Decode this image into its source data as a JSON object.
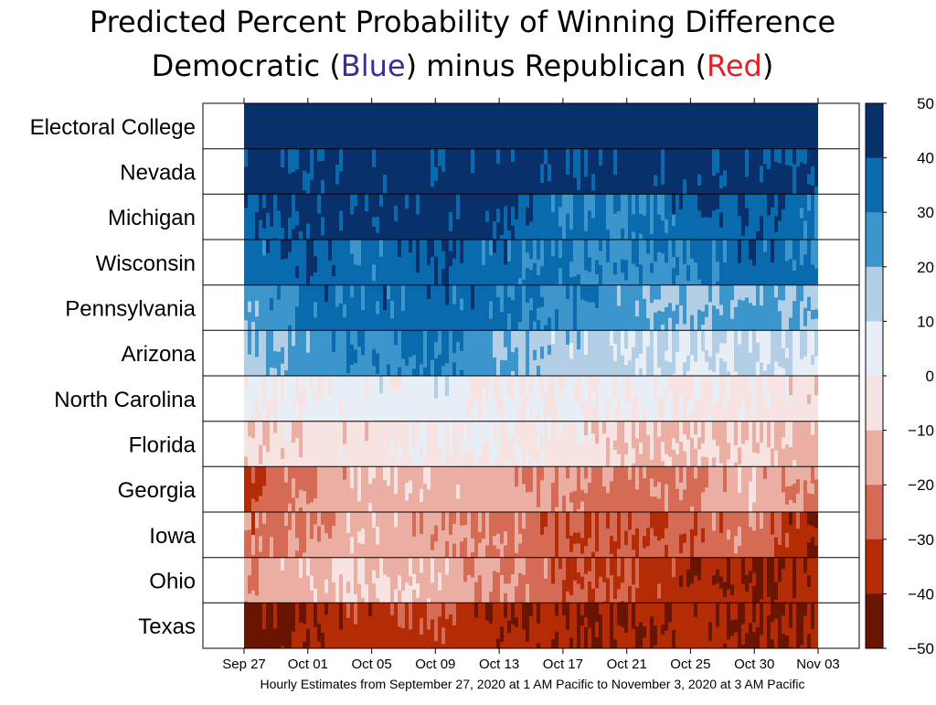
{
  "title": {
    "line1": "Predicted Percent Probability of Winning Difference",
    "line2_prefix": "Democratic (",
    "line2_dem": "Blue",
    "line2_mid": ") minus Republican (",
    "line2_rep": "Red",
    "line2_suffix": ")"
  },
  "footnote": "Hourly Estimates from September 27, 2020 at 1 AM Pacific to November 3, 2020 at 3 AM Pacific",
  "chart_data": {
    "type": "heatmap",
    "title": "Predicted Percent Probability of Winning Difference",
    "subtitle": "Democratic (Blue) minus Republican (Red)",
    "xlabel": "Hourly Estimates from September 27, 2020 at 1 AM Pacific to November 3, 2020 at 3 AM Pacific",
    "x_start": "2020-09-27",
    "x_end": "2020-11-03",
    "x_ticks": [
      "Sep 27",
      "Oct 01",
      "Oct 05",
      "Oct 09",
      "Oct 13",
      "Oct 17",
      "Oct 21",
      "Oct 25",
      "Oct 30",
      "Nov 03"
    ],
    "colorbar": {
      "range": [
        -50,
        50
      ],
      "ticks": [
        "50",
        "40",
        "30",
        "20",
        "10",
        "0",
        "−10",
        "−20",
        "−30",
        "−40",
        "−50"
      ],
      "bins": [
        {
          "from": 40,
          "to": 50,
          "color": "#08306b"
        },
        {
          "from": 30,
          "to": 40,
          "color": "#0a6aae"
        },
        {
          "from": 20,
          "to": 30,
          "color": "#3c95cb"
        },
        {
          "from": 10,
          "to": 20,
          "color": "#b3cfe6"
        },
        {
          "from": 0,
          "to": 10,
          "color": "#e8eef5"
        },
        {
          "from": -10,
          "to": 0,
          "color": "#f6e3e2"
        },
        {
          "from": -20,
          "to": -10,
          "color": "#eaaea3"
        },
        {
          "from": -30,
          "to": -20,
          "color": "#d56b55"
        },
        {
          "from": -40,
          "to": -30,
          "color": "#b32c06"
        },
        {
          "from": -50,
          "to": -40,
          "color": "#6a1402"
        }
      ]
    },
    "series": [
      {
        "name": "Electoral College",
        "values": [
          50,
          50,
          50,
          50,
          50,
          50,
          50,
          50,
          50,
          50
        ]
      },
      {
        "name": "Nevada",
        "values": [
          45,
          42,
          45,
          44,
          45,
          44,
          45,
          42,
          43,
          42
        ]
      },
      {
        "name": "Michigan",
        "values": [
          36,
          43,
          44,
          44,
          42,
          32,
          30,
          35,
          38,
          33
        ]
      },
      {
        "name": "Wisconsin",
        "values": [
          32,
          38,
          33,
          40,
          34,
          30,
          28,
          29,
          36,
          32
        ]
      },
      {
        "name": "Pennsylvania",
        "values": [
          20,
          34,
          33,
          36,
          32,
          28,
          24,
          18,
          25,
          18
        ]
      },
      {
        "name": "Arizona",
        "values": [
          15,
          25,
          28,
          32,
          22,
          15,
          12,
          8,
          12,
          8
        ]
      },
      {
        "name": "North Carolina",
        "values": [
          1,
          2,
          3,
          4,
          2,
          0,
          0,
          -2,
          -3,
          -8
        ]
      },
      {
        "name": "Florida",
        "values": [
          -8,
          -6,
          -3,
          -1,
          0,
          -4,
          -9,
          -12,
          -8,
          -15
        ]
      },
      {
        "name": "Georgia",
        "values": [
          -33,
          -18,
          -12,
          -12,
          -16,
          -20,
          -24,
          -20,
          -12,
          -22
        ]
      },
      {
        "name": "Iowa",
        "values": [
          -25,
          -18,
          -12,
          -18,
          -22,
          -28,
          -30,
          -28,
          -22,
          -42
        ]
      },
      {
        "name": "Ohio",
        "values": [
          -18,
          -12,
          -10,
          -12,
          -20,
          -28,
          -30,
          -36,
          -40,
          -38
        ]
      },
      {
        "name": "Texas",
        "values": [
          -45,
          -38,
          -35,
          -32,
          -38,
          -40,
          -40,
          -36,
          -42,
          -38
        ]
      }
    ]
  }
}
